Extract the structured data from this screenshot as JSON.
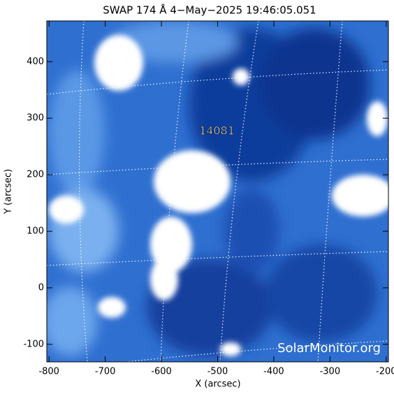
{
  "chart_data": {
    "type": "image",
    "title": "SWAP 174 Å  4−May−2025 19:46:05.051",
    "xlabel": "X (arcsec)",
    "ylabel": "Y (arcsec)",
    "xlim": [
      -804,
      -196
    ],
    "xticks": [
      -800,
      -700,
      -600,
      -500,
      -400,
      -300,
      -200
    ],
    "ylim": [
      -131,
      472
    ],
    "yticks": [
      -100,
      0,
      100,
      200,
      300,
      400
    ],
    "annotations": [
      "14081"
    ],
    "watermark": "SolarMonitor.org"
  }
}
